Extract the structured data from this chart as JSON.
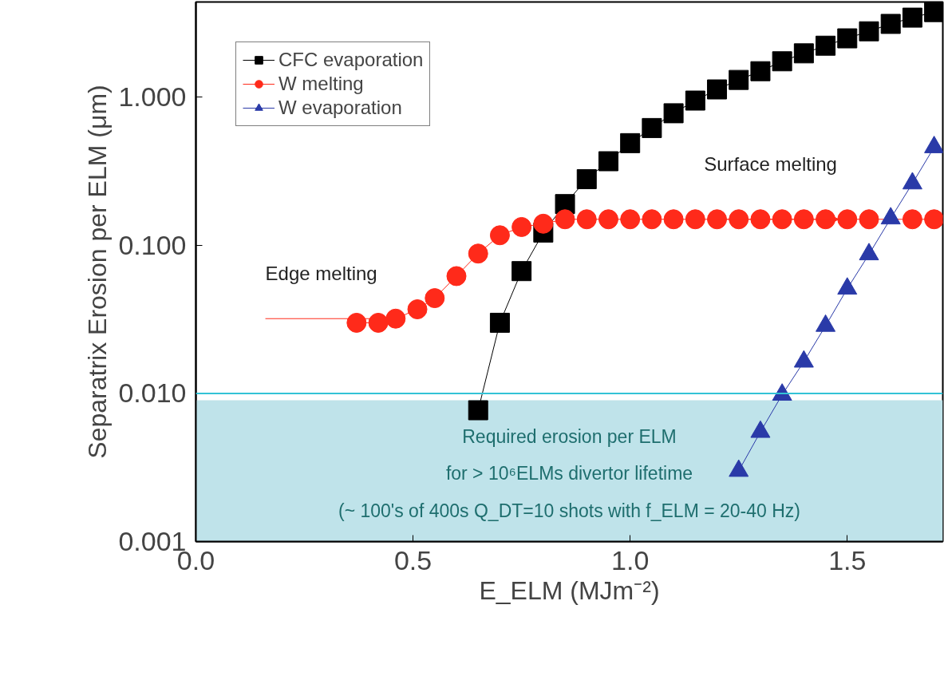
{
  "chart_data": {
    "type": "line",
    "xlabel": "E_ELM (MJm⁻²)",
    "ylabel": "Separatrix Erosion per ELM (μm)",
    "log": "y",
    "xlim": [
      0,
      1.72
    ],
    "ylim": [
      0.001,
      4.4
    ],
    "xticks": [
      {
        "value": 0,
        "label": "0.0"
      },
      {
        "value": 0.5,
        "label": "0.5"
      },
      {
        "value": 1,
        "label": "1.0"
      },
      {
        "value": 1.5,
        "label": "1.5"
      }
    ],
    "yticks": [
      {
        "value": 0.001,
        "label": "0.001"
      },
      {
        "value": 0.01,
        "label": "0.010"
      },
      {
        "value": 0.1,
        "label": "0.100"
      },
      {
        "value": 1,
        "label": "1.000"
      }
    ],
    "grid": false,
    "legend": "top left",
    "series": [
      {
        "name": "CFC evaporation",
        "color": "#000000",
        "marker": "square",
        "x": [
          0.65,
          0.7,
          0.75,
          0.8,
          0.85,
          0.9,
          0.95,
          1.0,
          1.05,
          1.1,
          1.15,
          1.2,
          1.25,
          1.3,
          1.35,
          1.4,
          1.45,
          1.5,
          1.55,
          1.6,
          1.65,
          1.7
        ],
        "values": [
          0.0077,
          0.03,
          0.067,
          0.122,
          0.19,
          0.28,
          0.37,
          0.49,
          0.62,
          0.78,
          0.95,
          1.13,
          1.31,
          1.5,
          1.75,
          1.98,
          2.23,
          2.5,
          2.79,
          3.13,
          3.45,
          3.76
        ]
      },
      {
        "name": "W melting",
        "color": "#ff2a1a",
        "marker": "circle",
        "x": [
          0.37,
          0.42,
          0.46,
          0.51,
          0.55,
          0.6,
          0.65,
          0.7,
          0.75,
          0.8,
          0.85,
          0.9,
          0.95,
          1.0,
          1.05,
          1.1,
          1.15,
          1.2,
          1.25,
          1.3,
          1.35,
          1.4,
          1.45,
          1.5,
          1.55,
          1.6,
          1.65,
          1.7
        ],
        "values": [
          0.03,
          0.03,
          0.032,
          0.037,
          0.044,
          0.062,
          0.088,
          0.117,
          0.133,
          0.14,
          0.15,
          0.15,
          0.15,
          0.15,
          0.15,
          0.15,
          0.15,
          0.15,
          0.15,
          0.15,
          0.15,
          0.15,
          0.15,
          0.15,
          0.15,
          null,
          0.15,
          0.15
        ]
      },
      {
        "name": "W evaporation",
        "color": "#2a3aa8",
        "marker": "triangle",
        "x": [
          1.25,
          1.3,
          1.35,
          1.4,
          1.45,
          1.5,
          1.55,
          1.6,
          1.65,
          1.7
        ],
        "values": [
          0.003,
          0.0055,
          0.0098,
          0.0164,
          0.0286,
          0.051,
          0.087,
          0.152,
          0.262,
          0.46
        ]
      }
    ],
    "bands": [
      {
        "axis": "y",
        "from": 0.001,
        "to": 0.009,
        "color": "#bfe3ea"
      }
    ],
    "ref_lines": [
      {
        "axis": "y",
        "value": 0.01,
        "color": "#33c3d6"
      }
    ],
    "annotations": [
      {
        "text": "Edge melting",
        "x": 0.43,
        "y": 0.032
      },
      {
        "text": "Surface melting",
        "x": 1.48,
        "y": 0.15
      },
      "Required erosion per ELM",
      "for > 10⁶ELMs divertor lifetime",
      "(~ 100's of 400s Q_DT=10 shots with f_ELM = 20-40 Hz)"
    ]
  }
}
